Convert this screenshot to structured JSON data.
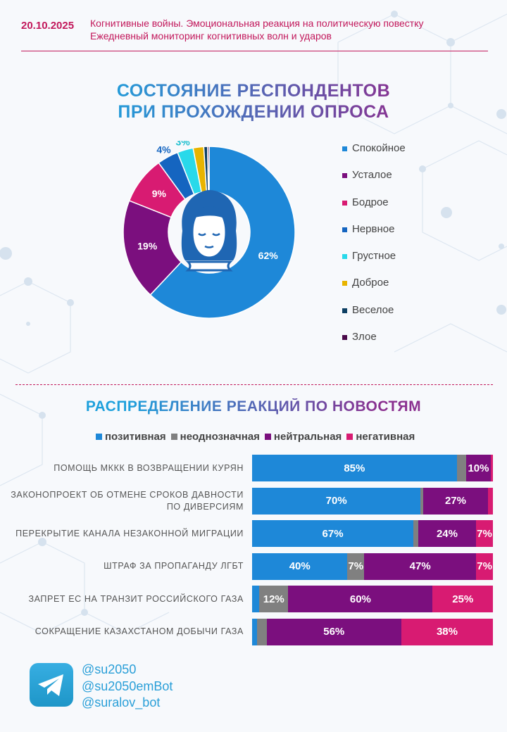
{
  "header": {
    "date": "20.10.2025",
    "line1": "Когнитивные войны. Эмоциональная реакция на политическую повестку",
    "line2": "Ежедневный мониторинг когнитивных волн и ударов"
  },
  "titles": {
    "donut_line1": "СОСТОЯНИЕ РЕСПОНДЕНТОВ",
    "donut_line2": "ПРИ ПРОХОЖДЕНИИ ОПРОСА",
    "bars": "РАСПРЕДЕЛЕНИЕ РЕАКЦИЙ ПО НОВОСТЯМ"
  },
  "center_icon": "woman-face-icon",
  "colors": {
    "accent": "#c2185b",
    "blue": "#1e88d8",
    "purple": "#7b0f7e",
    "pink": "#d81b72",
    "gray": "#808080"
  },
  "chart_data": [
    {
      "type": "pie",
      "title": "СОСТОЯНИЕ РЕСПОНДЕНТОВ ПРИ ПРОХОЖДЕНИИ ОПРОСА",
      "categories": [
        "Спокойное",
        "Усталое",
        "Бодрое",
        "Нервное",
        "Грустное",
        "Доброе",
        "Веселое",
        "Злое"
      ],
      "values": [
        62,
        19,
        9,
        4,
        3,
        2,
        0.7,
        0.3
      ],
      "labels": [
        "62%",
        "19%",
        "9%",
        "4%",
        "3%",
        "",
        "",
        ""
      ],
      "colors": [
        "#1e88d8",
        "#7b0f7e",
        "#d81b72",
        "#1565c0",
        "#29d9ea",
        "#e8b400",
        "#0d3f63",
        "#4a0a4a"
      ],
      "label_colors": [
        "#ffffff",
        "#ffffff",
        "#ffffff",
        "#1565c0",
        "#1bbfcf",
        "",
        "",
        ""
      ],
      "legend_position": "right"
    },
    {
      "type": "bar",
      "orientation": "horizontal",
      "stacked": true,
      "title": "РАСПРЕДЕЛЕНИЕ РЕАКЦИЙ ПО НОВОСТЯМ",
      "series_names": [
        "позитивная",
        "неоднозначная",
        "нейтральная",
        "негативная"
      ],
      "series_colors": [
        "#1e88d8",
        "#808080",
        "#7b0f7e",
        "#d81b72"
      ],
      "categories": [
        "Помощь  МККК в возвращении курян",
        "Законопроект  об отмене сроков давности  по диверсиям",
        "Перекрытие канала  незаконной миграции",
        "Штраф за пропаганду  ЛГБТ",
        "Запрет ЕС на транзит российского газа",
        "Сокращение Казахстаном  добычи газа"
      ],
      "values": [
        [
          85,
          4,
          10,
          1
        ],
        [
          70,
          1,
          27,
          2
        ],
        [
          67,
          2,
          24,
          7
        ],
        [
          40,
          7,
          47,
          7
        ],
        [
          3,
          12,
          60,
          25
        ],
        [
          2,
          4,
          56,
          38
        ]
      ],
      "labels": [
        [
          "85%",
          "",
          "10%",
          ""
        ],
        [
          "70%",
          "",
          "27%",
          ""
        ],
        [
          "67%",
          "",
          "24%",
          "7%"
        ],
        [
          "40%",
          "7%",
          "47%",
          "7%"
        ],
        [
          "",
          "12%",
          "60%",
          "25%"
        ],
        [
          "",
          "",
          "56%",
          "38%"
        ]
      ],
      "legend_position": "top"
    }
  ],
  "footer": {
    "icon": "telegram-icon",
    "handles": [
      "@su2050",
      "@su2050emBot",
      "@suralov_bot"
    ]
  }
}
